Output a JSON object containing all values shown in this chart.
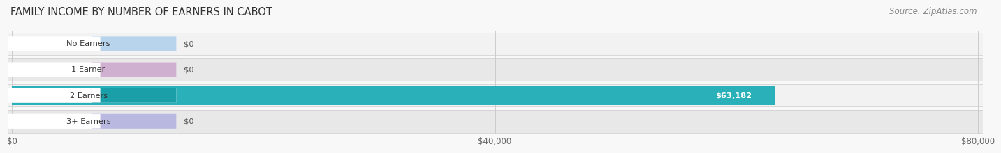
{
  "title": "FAMILY INCOME BY NUMBER OF EARNERS IN CABOT",
  "source": "Source: ZipAtlas.com",
  "categories": [
    "No Earners",
    "1 Earner",
    "2 Earners",
    "3+ Earners"
  ],
  "values": [
    0,
    0,
    63182,
    0
  ],
  "max_value": 80000,
  "bar_colors": [
    "#7ab8d4",
    "#c9a8c8",
    "#2ab0b8",
    "#a8a8d8"
  ],
  "label_pill_colors": [
    "#b8d4ec",
    "#d0b0d0",
    "#1a9fa8",
    "#b8b8e0"
  ],
  "bar_labels": [
    "$0",
    "$0",
    "$63,182",
    "$0"
  ],
  "xtick_values": [
    0,
    40000,
    80000
  ],
  "xtick_labels": [
    "$0",
    "$40,000",
    "$80,000"
  ],
  "bg_color": "#f8f8f8",
  "row_bg_light": "#f2f2f2",
  "row_bg_dark": "#e8e8e8",
  "title_fontsize": 10.5,
  "source_fontsize": 8.5
}
